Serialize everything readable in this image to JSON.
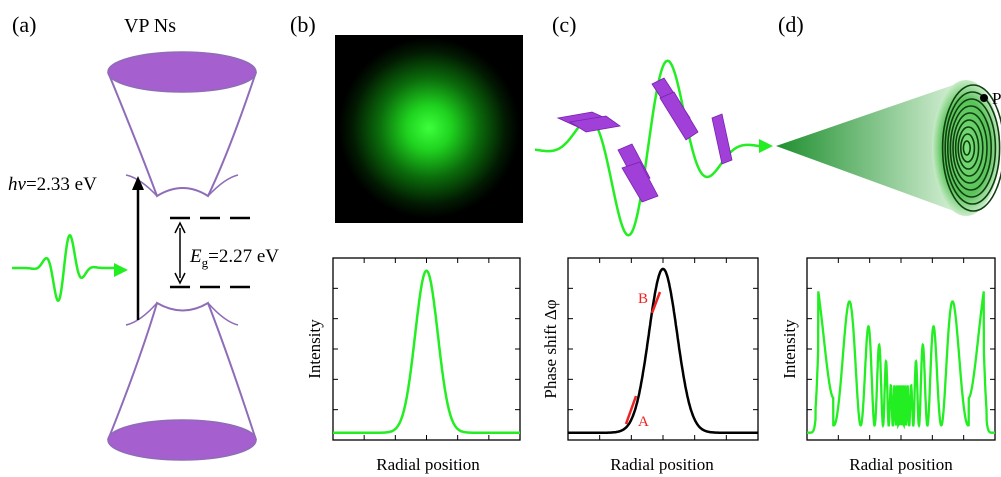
{
  "panels": {
    "a": {
      "label": "(a)",
      "title": "VP Ns",
      "photon_energy_italic": "hv",
      "photon_energy_value": "=2.33 eV",
      "gap_symbol": "E",
      "gap_subscript": "g",
      "gap_value": "=2.27 eV"
    },
    "b": {
      "label": "(b)"
    },
    "c": {
      "label": "(c)",
      "mark_a": "A",
      "mark_b": "B"
    },
    "d": {
      "label": "(d)",
      "ring_point": "P"
    }
  },
  "colors": {
    "laser_green": "#22ee22",
    "cone_purple": "#8f6cb8",
    "cap_purple": "#a65fce",
    "flake_purple": "#a040d8",
    "marker_red": "#ee2222"
  },
  "chart_data": [
    {
      "type": "line",
      "panel": "b",
      "title": "",
      "xlabel": "Radial position",
      "ylabel": "Intensity",
      "series": [
        {
          "shape": "gaussian",
          "center": 0.5,
          "width": 0.09,
          "baseline": 0.04,
          "peak": 0.93
        }
      ]
    },
    {
      "type": "line",
      "panel": "c",
      "title": "",
      "xlabel": "Radial position",
      "ylabel": "Phase shift Δφ",
      "series": [
        {
          "shape": "gaussian",
          "center": 0.5,
          "width": 0.11,
          "baseline": 0.04,
          "peak": 0.94
        }
      ],
      "annotations": [
        "A",
        "B"
      ]
    },
    {
      "type": "line",
      "panel": "d",
      "title": "",
      "xlabel": "Radial position",
      "ylabel": "Intensity",
      "series": [
        {
          "shape": "diffraction-ring pattern",
          "symmetric": true
        }
      ]
    }
  ]
}
